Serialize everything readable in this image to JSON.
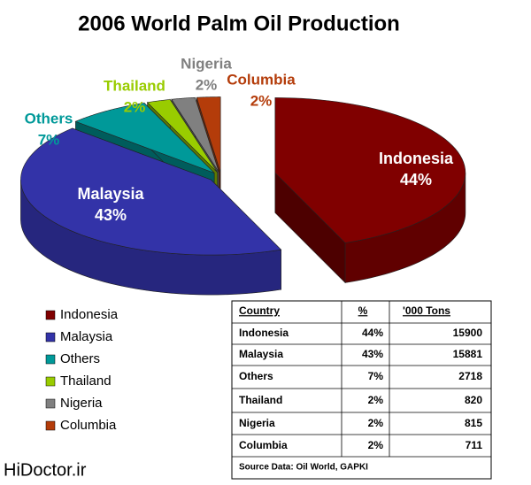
{
  "chart_data": {
    "type": "pie",
    "title": "2006 World Palm Oil Production",
    "categories": [
      "Indonesia",
      "Malaysia",
      "Others",
      "Thailand",
      "Nigeria",
      "Columbia"
    ],
    "values": [
      44,
      43,
      7,
      2,
      2,
      2
    ],
    "value_labels": [
      "44%",
      "43%",
      "7%",
      "2%",
      "2%",
      "2%"
    ],
    "colors": [
      "#800000",
      "#3333a8",
      "#009999",
      "#99cc00",
      "#808080",
      "#b43c0a"
    ],
    "legend": "bottom-left"
  },
  "table": {
    "columns": [
      "Country",
      "%",
      "'000 Tons"
    ],
    "rows": [
      [
        "Indonesia",
        "44%",
        15900
      ],
      [
        "Malaysia",
        "43%",
        15881
      ],
      [
        "Others",
        "7%",
        2718
      ],
      [
        "Thailand",
        "2%",
        820
      ],
      [
        "Nigeria",
        "2%",
        815
      ],
      [
        "Columbia",
        "2%",
        711
      ]
    ],
    "source": "Source Data: Oil World, GAPKI"
  },
  "watermark": "HiDoctor.ir"
}
